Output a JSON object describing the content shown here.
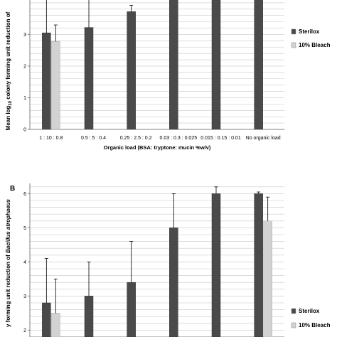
{
  "chart_data": [
    {
      "type": "bar",
      "panel_label": "",
      "title": "",
      "xlabel": "Organic load (BSA: tryptone: mucin %w/v)",
      "ylabel_parts": [
        "Mean log",
        "10",
        " colony forming unit reduction of"
      ],
      "ylim": [
        0,
        4.2
      ],
      "yticks": [
        "0",
        "1",
        "2",
        "3"
      ],
      "categories": [
        "1 : 10 : 0.8",
        "0.5 : 5 : 0.4",
        "0.25 : 2.5 : 0.2",
        "0.03 : 0.3 : 0.025",
        "0.015 : 0.15 : 0.01",
        "No organic load"
      ],
      "series": [
        {
          "name": "Sterilox",
          "values": [
            3.05,
            3.22,
            3.72,
            4.2,
            4.2,
            4.2
          ],
          "errors": [
            1.5,
            1.2,
            0.2,
            0.5,
            0.5,
            0.5
          ]
        },
        {
          "name": "10% Bleach",
          "values": [
            2.78,
            null,
            null,
            null,
            null,
            null
          ],
          "errors": [
            0.52,
            null,
            null,
            null,
            null,
            null
          ]
        }
      ],
      "grid": true,
      "legend_position": "right"
    },
    {
      "type": "bar",
      "panel_label": "B",
      "title": "",
      "xlabel": "",
      "ylabel_parts": [
        "y forming unit reduction of ",
        "Bacillus atrophaeus",
        ""
      ],
      "ylim": [
        1.8,
        6.3
      ],
      "yticks": [
        "2",
        "3",
        "4",
        "5",
        "6"
      ],
      "categories": [
        "",
        "",
        "",
        "",
        "",
        ""
      ],
      "series": [
        {
          "name": "Sterilox",
          "values": [
            2.8,
            3.0,
            3.4,
            5.0,
            6.0,
            6.0
          ],
          "errors": [
            1.3,
            1.0,
            1.2,
            1.0,
            0.2,
            0.05
          ]
        },
        {
          "name": "10% Bleach",
          "values": [
            2.5,
            null,
            null,
            null,
            null,
            5.2
          ],
          "errors": [
            1.0,
            null,
            null,
            null,
            null,
            0.7
          ]
        }
      ],
      "grid": true,
      "legend_position": "right"
    }
  ],
  "colors": {
    "sterilox": "#4a4a4a",
    "bleach": "#d2d2d2",
    "grid": "#c8c8c8",
    "axis": "#808080"
  }
}
